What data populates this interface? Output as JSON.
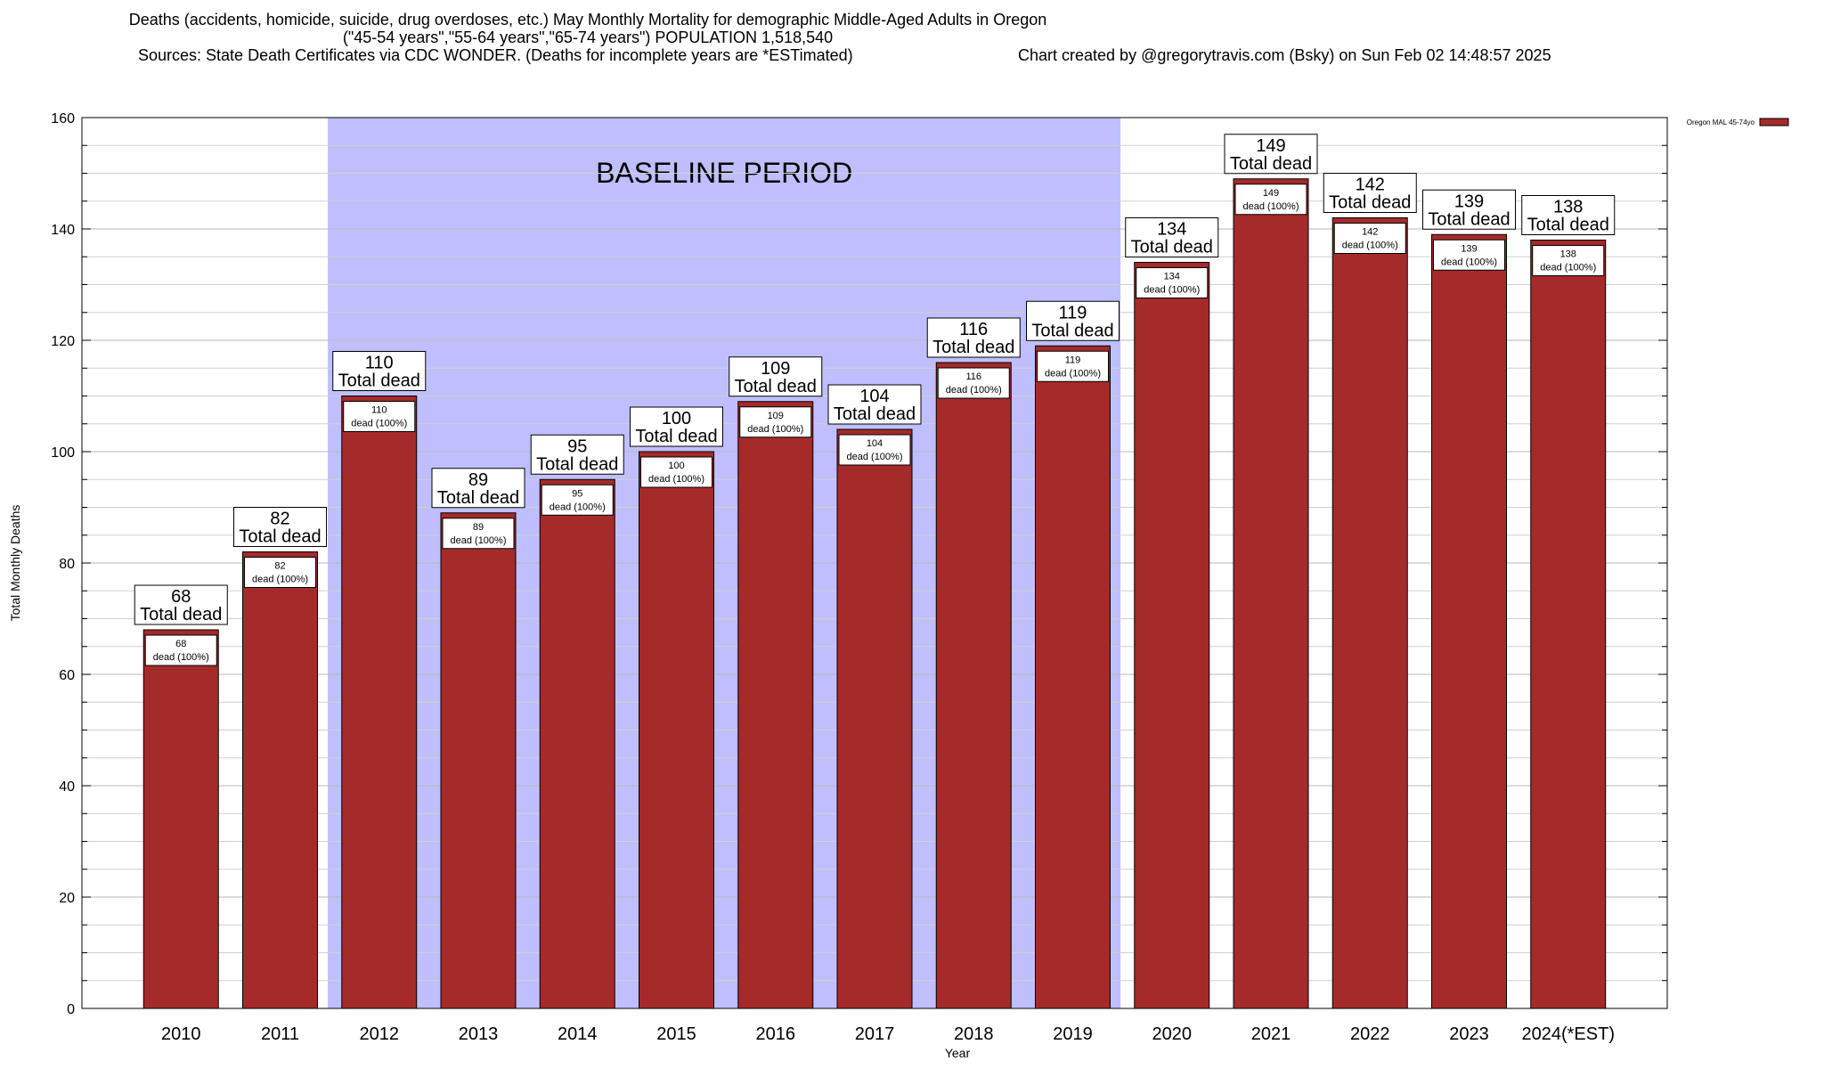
{
  "header": {
    "title_line1": "Deaths (accidents, homicide, suicide, drug overdoses, etc.) May Monthly Mortality for demographic Middle-Aged Adults in Oregon",
    "title_line2": "(\"45-54 years\",\"55-64 years\",\"65-74 years\") POPULATION 1,518,540",
    "sources": "Sources: State Death Certificates via CDC WONDER. (Deaths for incomplete years are *ESTimated)",
    "credit": "Chart created by @gregorytravis.com (Bsky) on Sun Feb 02 14:48:57 2025"
  },
  "chart_data": {
    "type": "bar",
    "categories": [
      "2010",
      "2011",
      "2012",
      "2013",
      "2014",
      "2015",
      "2016",
      "2017",
      "2018",
      "2019",
      "2020",
      "2021",
      "2022",
      "2023",
      "2024(*EST)"
    ],
    "series": [
      {
        "name": "Oregon MAL 45-74yo",
        "values": [
          68,
          82,
          110,
          89,
          95,
          100,
          109,
          104,
          116,
          119,
          134,
          149,
          142,
          139,
          138
        ],
        "color": "#a52a2a"
      }
    ],
    "total_label_suffix": "Total dead",
    "bar_label_suffix": "dead (100%)",
    "xlabel": "Year",
    "ylabel": "Total Monthly Deaths",
    "ylim": [
      0,
      160
    ],
    "yticks": [
      0,
      20,
      40,
      60,
      80,
      100,
      120,
      140,
      160
    ],
    "grid": "horizontal",
    "legend_position": "top-right",
    "baseline_period": {
      "label": "BASELINE PERIOD",
      "start_category": "2012",
      "end_category": "2019",
      "color": "#bfbfff"
    }
  }
}
